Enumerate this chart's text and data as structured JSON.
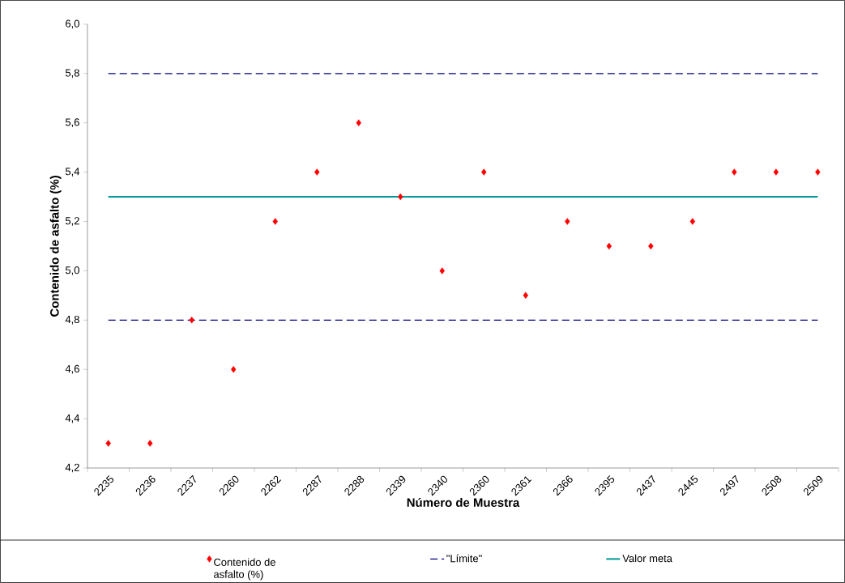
{
  "chart_data": {
    "type": "scatter",
    "xlabel": "Número de Muestra",
    "ylabel": "Contenido de asfalto (%)",
    "categories": [
      "2235",
      "2236",
      "2237",
      "2260",
      "2262",
      "2287",
      "2288",
      "2339",
      "2340",
      "2360",
      "2361",
      "2366",
      "2395",
      "2437",
      "2445",
      "2497",
      "2508",
      "2509"
    ],
    "ylim": [
      4.2,
      6.0
    ],
    "yticks": [
      {
        "value": 4.2,
        "label": "4,2"
      },
      {
        "value": 4.4,
        "label": "4,4"
      },
      {
        "value": 4.6,
        "label": "4,6"
      },
      {
        "value": 4.8,
        "label": "4,8"
      },
      {
        "value": 5.0,
        "label": "5,0"
      },
      {
        "value": 5.2,
        "label": "5,2"
      },
      {
        "value": 5.4,
        "label": "5,4"
      },
      {
        "value": 5.6,
        "label": "5,6"
      },
      {
        "value": 5.8,
        "label": "5,8"
      },
      {
        "value": 6.0,
        "label": "6,0"
      }
    ],
    "grid": false,
    "legend": "bottom",
    "series": [
      {
        "name": "Contenido de asfalto (%)",
        "color": "#ff0000",
        "marker": "diamond",
        "values": [
          4.3,
          4.3,
          4.8,
          4.6,
          5.2,
          5.4,
          5.6,
          5.3,
          5.0,
          5.4,
          4.9,
          5.2,
          5.1,
          5.1,
          5.2,
          5.4,
          5.4,
          5.4
        ]
      },
      {
        "name": "\"Límite\"",
        "type": "line",
        "color": "#000080",
        "line_style": "dashed",
        "values": [
          5.8,
          5.8,
          5.8,
          5.8,
          5.8,
          5.8,
          5.8,
          5.8,
          5.8,
          5.8,
          5.8,
          5.8,
          5.8,
          5.8,
          5.8,
          5.8,
          5.8,
          5.8
        ]
      },
      {
        "type": "line",
        "color": "#000080",
        "line_style": "dashed",
        "values": [
          4.8,
          4.8,
          4.8,
          4.8,
          4.8,
          4.8,
          4.8,
          4.8,
          4.8,
          4.8,
          4.8,
          4.8,
          4.8,
          4.8,
          4.8,
          4.8,
          4.8,
          4.8
        ]
      },
      {
        "name": "Valor meta",
        "type": "line",
        "color": "#009999",
        "line_style": "solid",
        "values": [
          5.3,
          5.3,
          5.3,
          5.3,
          5.3,
          5.3,
          5.3,
          5.3,
          5.3,
          5.3,
          5.3,
          5.3,
          5.3,
          5.3,
          5.3,
          5.3,
          5.3,
          5.3
        ]
      }
    ]
  }
}
